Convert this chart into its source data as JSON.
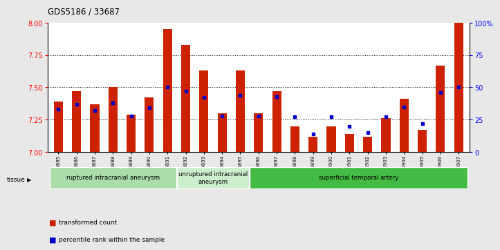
{
  "title": "GDS5186 / 33687",
  "samples": [
    "GSM1306885",
    "GSM1306886",
    "GSM1306887",
    "GSM1306888",
    "GSM1306889",
    "GSM1306890",
    "GSM1306891",
    "GSM1306892",
    "GSM1306893",
    "GSM1306894",
    "GSM1306895",
    "GSM1306896",
    "GSM1306897",
    "GSM1306898",
    "GSM1306899",
    "GSM1306900",
    "GSM1306901",
    "GSM1306902",
    "GSM1306903",
    "GSM1306904",
    "GSM1306905",
    "GSM1306906",
    "GSM1306907"
  ],
  "red_values": [
    7.39,
    7.47,
    7.37,
    7.5,
    7.29,
    7.42,
    7.95,
    7.83,
    7.63,
    7.3,
    7.63,
    7.3,
    7.47,
    7.2,
    7.12,
    7.2,
    7.14,
    7.12,
    7.26,
    7.41,
    7.17,
    7.67,
    8.0
  ],
  "blue_values": [
    33,
    37,
    32,
    38,
    28,
    34,
    50,
    47,
    42,
    28,
    44,
    28,
    43,
    27,
    14,
    27,
    20,
    15,
    27,
    35,
    22,
    46,
    50
  ],
  "ylim_left": [
    7.0,
    8.0
  ],
  "ylim_right": [
    0,
    100
  ],
  "yticks_left": [
    7.0,
    7.25,
    7.5,
    7.75,
    8.0
  ],
  "yticks_right": [
    0,
    25,
    50,
    75,
    100
  ],
  "bar_color": "#cc2200",
  "dot_color": "#0000cc",
  "fig_bg": "#e8e8e8",
  "plot_bg": "#ffffff",
  "groups": [
    {
      "label": "ruptured intracranial aneurysm",
      "start": 0,
      "end": 7,
      "color": "#aaddaa"
    },
    {
      "label": "unruptured intracranial\naneurysm",
      "start": 7,
      "end": 11,
      "color": "#cceecc"
    },
    {
      "label": "superficial temporal artery",
      "start": 11,
      "end": 23,
      "color": "#44bb44"
    }
  ]
}
